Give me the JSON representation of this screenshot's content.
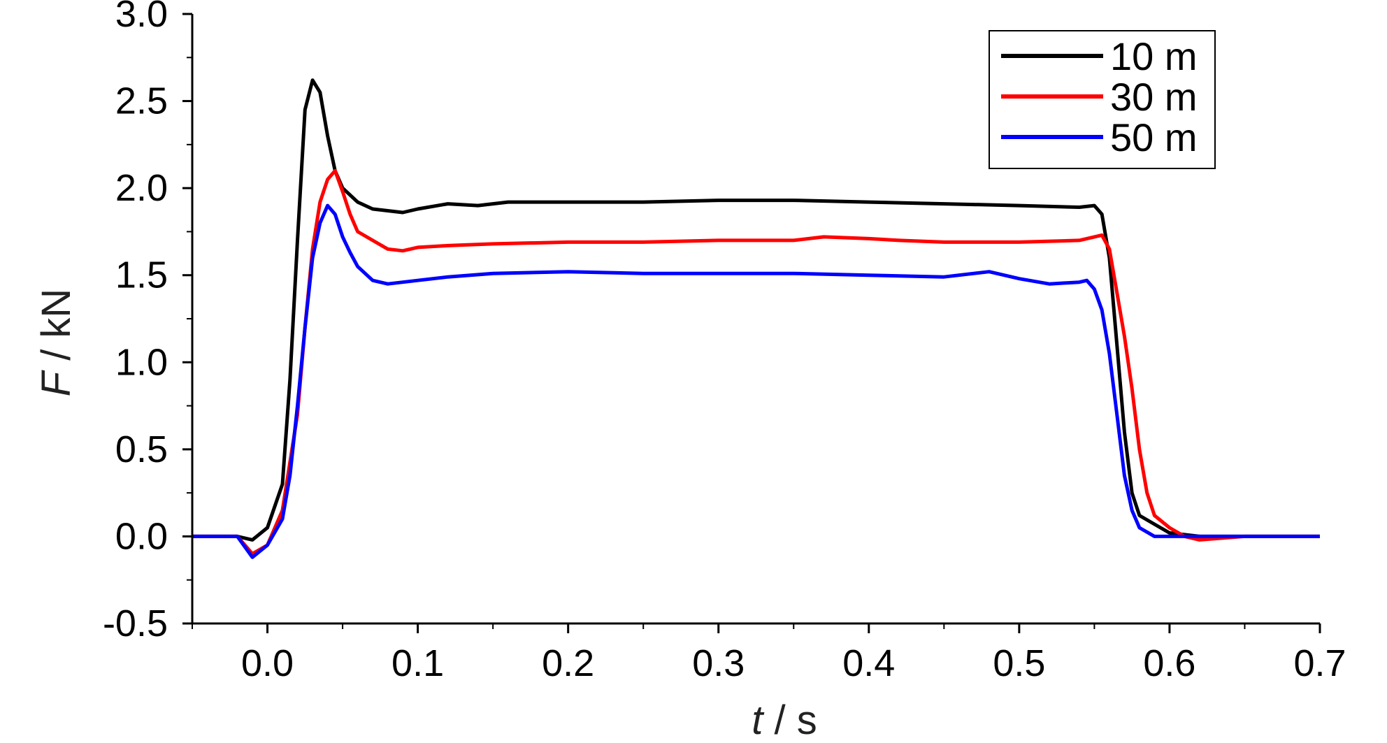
{
  "chart_data": {
    "type": "line",
    "title": "",
    "xlabel": {
      "symbol": "t",
      "unit": " / s"
    },
    "ylabel": {
      "symbol": "F",
      "unit": " / kN"
    },
    "xlim": [
      -0.05,
      0.7
    ],
    "ylim": [
      -0.5,
      3.0
    ],
    "xticks": [
      0.0,
      0.1,
      0.2,
      0.3,
      0.4,
      0.5,
      0.6,
      0.7
    ],
    "xtick_labels": [
      "0.0",
      "0.1",
      "0.2",
      "0.3",
      "0.4",
      "0.5",
      "0.6",
      "0.7"
    ],
    "yticks": [
      -0.5,
      0.0,
      0.5,
      1.0,
      1.5,
      2.0,
      2.5,
      3.0
    ],
    "ytick_labels": [
      "-0.5",
      "0.0",
      "0.5",
      "1.0",
      "1.5",
      "2.0",
      "2.5",
      "3.0"
    ],
    "grid": false,
    "legend_position": "top-right",
    "series": [
      {
        "name": "10 m",
        "color": "#000000",
        "points": [
          [
            -0.05,
            0.0
          ],
          [
            -0.02,
            0.0
          ],
          [
            -0.01,
            -0.02
          ],
          [
            0.0,
            0.05
          ],
          [
            0.01,
            0.3
          ],
          [
            0.015,
            0.9
          ],
          [
            0.02,
            1.7
          ],
          [
            0.025,
            2.45
          ],
          [
            0.03,
            2.62
          ],
          [
            0.035,
            2.55
          ],
          [
            0.04,
            2.3
          ],
          [
            0.045,
            2.1
          ],
          [
            0.05,
            2.0
          ],
          [
            0.06,
            1.92
          ],
          [
            0.07,
            1.88
          ],
          [
            0.08,
            1.87
          ],
          [
            0.09,
            1.86
          ],
          [
            0.1,
            1.88
          ],
          [
            0.12,
            1.91
          ],
          [
            0.14,
            1.9
          ],
          [
            0.16,
            1.92
          ],
          [
            0.2,
            1.92
          ],
          [
            0.25,
            1.92
          ],
          [
            0.3,
            1.93
          ],
          [
            0.35,
            1.93
          ],
          [
            0.4,
            1.92
          ],
          [
            0.45,
            1.91
          ],
          [
            0.5,
            1.9
          ],
          [
            0.54,
            1.89
          ],
          [
            0.55,
            1.9
          ],
          [
            0.555,
            1.85
          ],
          [
            0.56,
            1.6
          ],
          [
            0.565,
            1.1
          ],
          [
            0.57,
            0.6
          ],
          [
            0.575,
            0.25
          ],
          [
            0.58,
            0.12
          ],
          [
            0.59,
            0.07
          ],
          [
            0.6,
            0.02
          ],
          [
            0.62,
            0.0
          ],
          [
            0.65,
            0.0
          ],
          [
            0.7,
            0.0
          ]
        ]
      },
      {
        "name": "30 m",
        "color": "#ff0000",
        "points": [
          [
            -0.05,
            0.0
          ],
          [
            -0.02,
            0.0
          ],
          [
            -0.01,
            -0.1
          ],
          [
            0.0,
            -0.05
          ],
          [
            0.01,
            0.15
          ],
          [
            0.02,
            0.7
          ],
          [
            0.025,
            1.2
          ],
          [
            0.03,
            1.65
          ],
          [
            0.035,
            1.92
          ],
          [
            0.04,
            2.05
          ],
          [
            0.045,
            2.1
          ],
          [
            0.05,
            1.98
          ],
          [
            0.055,
            1.85
          ],
          [
            0.06,
            1.75
          ],
          [
            0.07,
            1.7
          ],
          [
            0.08,
            1.65
          ],
          [
            0.09,
            1.64
          ],
          [
            0.1,
            1.66
          ],
          [
            0.12,
            1.67
          ],
          [
            0.15,
            1.68
          ],
          [
            0.2,
            1.69
          ],
          [
            0.25,
            1.69
          ],
          [
            0.3,
            1.7
          ],
          [
            0.35,
            1.7
          ],
          [
            0.37,
            1.72
          ],
          [
            0.4,
            1.71
          ],
          [
            0.42,
            1.7
          ],
          [
            0.45,
            1.69
          ],
          [
            0.5,
            1.69
          ],
          [
            0.54,
            1.7
          ],
          [
            0.55,
            1.72
          ],
          [
            0.555,
            1.73
          ],
          [
            0.56,
            1.65
          ],
          [
            0.565,
            1.4
          ],
          [
            0.57,
            1.15
          ],
          [
            0.575,
            0.85
          ],
          [
            0.58,
            0.5
          ],
          [
            0.585,
            0.25
          ],
          [
            0.59,
            0.12
          ],
          [
            0.6,
            0.05
          ],
          [
            0.61,
            0.0
          ],
          [
            0.62,
            -0.02
          ],
          [
            0.65,
            0.0
          ],
          [
            0.7,
            0.0
          ]
        ]
      },
      {
        "name": "50 m",
        "color": "#0000ff",
        "points": [
          [
            -0.05,
            0.0
          ],
          [
            -0.02,
            0.0
          ],
          [
            -0.01,
            -0.12
          ],
          [
            0.0,
            -0.05
          ],
          [
            0.01,
            0.1
          ],
          [
            0.015,
            0.35
          ],
          [
            0.02,
            0.75
          ],
          [
            0.025,
            1.2
          ],
          [
            0.03,
            1.6
          ],
          [
            0.035,
            1.8
          ],
          [
            0.04,
            1.9
          ],
          [
            0.045,
            1.85
          ],
          [
            0.05,
            1.72
          ],
          [
            0.055,
            1.63
          ],
          [
            0.06,
            1.55
          ],
          [
            0.07,
            1.47
          ],
          [
            0.08,
            1.45
          ],
          [
            0.09,
            1.46
          ],
          [
            0.1,
            1.47
          ],
          [
            0.12,
            1.49
          ],
          [
            0.15,
            1.51
          ],
          [
            0.2,
            1.52
          ],
          [
            0.25,
            1.51
          ],
          [
            0.3,
            1.51
          ],
          [
            0.35,
            1.51
          ],
          [
            0.4,
            1.5
          ],
          [
            0.45,
            1.49
          ],
          [
            0.48,
            1.52
          ],
          [
            0.5,
            1.48
          ],
          [
            0.52,
            1.45
          ],
          [
            0.54,
            1.46
          ],
          [
            0.545,
            1.47
          ],
          [
            0.55,
            1.42
          ],
          [
            0.555,
            1.3
          ],
          [
            0.56,
            1.05
          ],
          [
            0.565,
            0.7
          ],
          [
            0.57,
            0.35
          ],
          [
            0.575,
            0.15
          ],
          [
            0.58,
            0.05
          ],
          [
            0.59,
            0.0
          ],
          [
            0.6,
            0.0
          ],
          [
            0.65,
            0.0
          ],
          [
            0.7,
            0.0
          ]
        ]
      }
    ]
  }
}
